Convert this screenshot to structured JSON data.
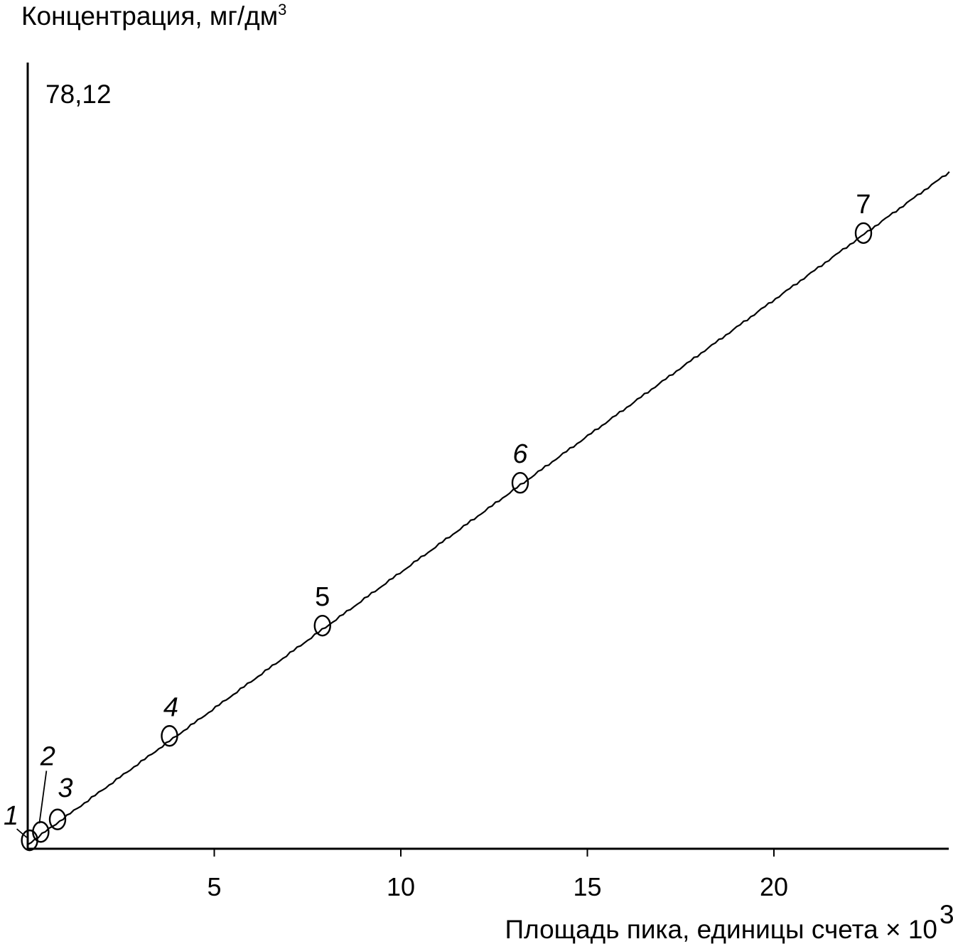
{
  "chart_data": {
    "type": "scatter",
    "title": "",
    "ylabel": "Концентрация, мг/дм",
    "ylabel_superscript": "3",
    "xlabel": "Площадь пика, единицы счета × 10",
    "xlabel_superscript": "3",
    "y_annotation": "78,12",
    "xlim": [
      0,
      24.7
    ],
    "x_ticks": [
      {
        "value": 5,
        "label": "5"
      },
      {
        "value": 10,
        "label": "10"
      },
      {
        "value": 15,
        "label": "15"
      },
      {
        "value": 20,
        "label": "20"
      }
    ],
    "grid": false,
    "legend": "none",
    "series": [
      {
        "points": [
          {
            "label": "1",
            "x": 0.05,
            "y": 0.5
          },
          {
            "label": "2",
            "x": 0.35,
            "y": 1.5
          },
          {
            "label": "3",
            "x": 0.8,
            "y": 3.0
          },
          {
            "label": "4",
            "x": 3.8,
            "y": 13.0
          },
          {
            "label": "5",
            "x": 7.9,
            "y": 26.2
          },
          {
            "label": "6",
            "x": 13.2,
            "y": 43.3
          },
          {
            "label": "7",
            "x": 22.4,
            "y": 73.2
          }
        ],
        "marker": "open-ellipse",
        "color": "#000000"
      }
    ],
    "fit_line": {
      "from": [
        0,
        0
      ],
      "to": [
        24.7,
        80.5
      ]
    }
  }
}
